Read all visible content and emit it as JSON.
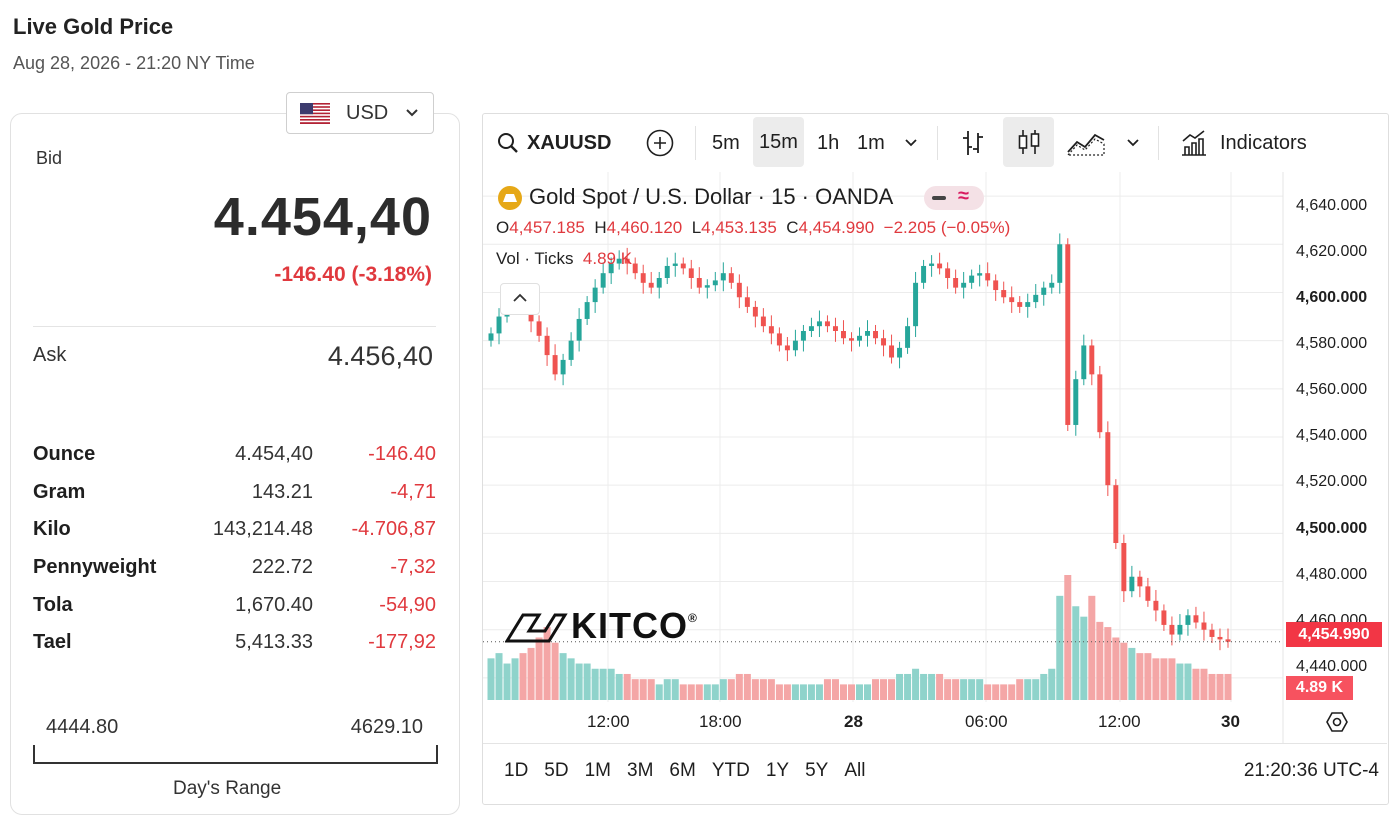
{
  "header": {
    "title": "Live Gold Price",
    "subtitle": "Aug 28, 2026 - 21:20 NY Time"
  },
  "currency": {
    "selected": "USD",
    "flag_icon": "us-flag-icon"
  },
  "quote": {
    "bid_label": "Bid",
    "bid_value": "4.454,40",
    "bid_change": "-146.40 (-3.18%)",
    "ask_label": "Ask",
    "ask_value": "4.456,40"
  },
  "units": [
    {
      "unit": "Ounce",
      "price": "4.454,40",
      "change": "-146.40"
    },
    {
      "unit": "Gram",
      "price": "143.21",
      "change": "-4,71"
    },
    {
      "unit": "Kilo",
      "price": "143,214.48",
      "change": "-4.706,87"
    },
    {
      "unit": "Pennyweight",
      "price": "222.72",
      "change": "-7,32"
    },
    {
      "unit": "Tola",
      "price": "1,670.40",
      "change": "-54,90"
    },
    {
      "unit": "Tael",
      "price": "5,413.33",
      "change": "-177,92"
    }
  ],
  "day_range": {
    "low": "4444.80",
    "high": "4629.10",
    "label": "Day's Range"
  },
  "toolbar": {
    "symbol": "XAUUSD",
    "intervals": [
      "5m",
      "15m",
      "1h",
      "1m"
    ],
    "selected_interval": "15m",
    "indicators_label": "Indicators"
  },
  "legend": {
    "title": "Gold Spot  /  U.S. Dollar · 15 · OANDA",
    "o_label": "O",
    "o_value": "4,457.185",
    "h_label": "H",
    "h_value": "4,460.120",
    "l_label": "L",
    "l_value": "4,453.135",
    "c_label": "C",
    "c_value": "4,454.990",
    "change": "−2.205 (−0.05%)",
    "vol_label": "Vol · Ticks",
    "vol_value": "4.89 K"
  },
  "colors": {
    "up": "#26a69a",
    "down": "#ef5350",
    "accent": "#e0393e",
    "price_tag": "#f23645"
  },
  "chart_data": {
    "type": "candlestick",
    "x_tick_labels": [
      "12:00",
      "18:00",
      "28",
      "06:00",
      "12:00",
      "30"
    ],
    "y_tick_labels": [
      "4,640.000",
      "4,620.000",
      "4,600.000",
      "4,580.000",
      "4,560.000",
      "4,540.000",
      "4,520.000",
      "4,500.000",
      "4,480.000",
      "4,460.000",
      "4,440.000"
    ],
    "ylim": [
      4430,
      4650
    ],
    "last_price": "4,454.990",
    "last_volume": "4.89 K",
    "close": [
      4583,
      4590,
      4596,
      4598,
      4594,
      4588,
      4582,
      4574,
      4566,
      4572,
      4580,
      4589,
      4596,
      4602,
      4608,
      4612,
      4614,
      4612,
      4608,
      4604,
      4602,
      4606,
      4611,
      4612,
      4610,
      4606,
      4602,
      4603,
      4605,
      4608,
      4604,
      4598,
      4594,
      4590,
      4586,
      4583,
      4578,
      4576,
      4580,
      4584,
      4586,
      4588,
      4586,
      4584,
      4581,
      4580,
      4582,
      4584,
      4581,
      4578,
      4573,
      4577,
      4586,
      4604,
      4611,
      4612,
      4610,
      4606,
      4602,
      4604,
      4607,
      4608,
      4605,
      4601,
      4598,
      4596,
      4594,
      4596,
      4599,
      4602,
      4604,
      4620,
      4545,
      4564,
      4578,
      4566,
      4542,
      4520,
      4496,
      4476,
      4482,
      4478,
      4472,
      4468,
      4462,
      4458,
      4462,
      4466,
      4463,
      4460,
      4457,
      4456,
      4455
    ],
    "volume": [
      8,
      9,
      7,
      8,
      9,
      10,
      12,
      14,
      11,
      9,
      8,
      7,
      7,
      6,
      6,
      6,
      5,
      5,
      4,
      4,
      4,
      3,
      4,
      4,
      3,
      3,
      3,
      3,
      3,
      4,
      4,
      5,
      5,
      4,
      4,
      4,
      3,
      3,
      3,
      3,
      3,
      3,
      4,
      4,
      3,
      3,
      3,
      3,
      4,
      4,
      4,
      5,
      5,
      6,
      5,
      5,
      5,
      4,
      4,
      4,
      4,
      4,
      3,
      3,
      3,
      3,
      4,
      4,
      4,
      5,
      6,
      20,
      24,
      18,
      16,
      20,
      15,
      14,
      12,
      11,
      10,
      9,
      9,
      8,
      8,
      8,
      7,
      7,
      6,
      6,
      5,
      5,
      5
    ]
  },
  "footer": {
    "ranges": [
      "1D",
      "5D",
      "1M",
      "3M",
      "6M",
      "YTD",
      "1Y",
      "5Y",
      "All"
    ],
    "clock": "21:20:36 UTC-4"
  }
}
